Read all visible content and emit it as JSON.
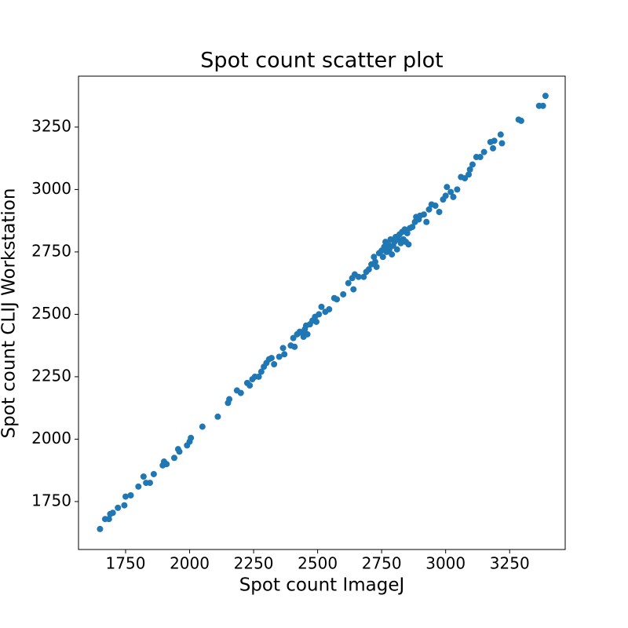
{
  "chart_data": {
    "type": "scatter",
    "title": "Spot count scatter plot",
    "x_label": "Spot count ImageJ",
    "y_label": "Spot count CLIJ Workstation",
    "color": "#1f77b4",
    "xlim": [
      1566,
      3467
    ],
    "ylim": [
      1558,
      3454
    ],
    "xticks": [
      1750,
      2000,
      2250,
      2500,
      2750,
      3000,
      3250
    ],
    "yticks": [
      1750,
      2000,
      2250,
      2500,
      2750,
      3000,
      3250
    ],
    "x": [
      1650,
      1670,
      1685,
      1690,
      1700,
      1720,
      1745,
      1750,
      1770,
      1800,
      1820,
      1830,
      1845,
      1860,
      1895,
      1900,
      1910,
      1940,
      1955,
      1960,
      1990,
      2000,
      2005,
      2050,
      2110,
      2150,
      2155,
      2185,
      2200,
      2225,
      2235,
      2245,
      2255,
      2270,
      2280,
      2290,
      2300,
      2310,
      2320,
      2330,
      2350,
      2365,
      2370,
      2395,
      2405,
      2410,
      2420,
      2430,
      2440,
      2445,
      2450,
      2455,
      2460,
      2470,
      2480,
      2490,
      2495,
      2505,
      2515,
      2530,
      2545,
      2565,
      2575,
      2600,
      2620,
      2635,
      2645,
      2640,
      2660,
      2680,
      2690,
      2700,
      2710,
      2720,
      2725,
      2730,
      2740,
      2750,
      2755,
      2760,
      2765,
      2770,
      2775,
      2780,
      2785,
      2790,
      2795,
      2800,
      2805,
      2810,
      2815,
      2820,
      2825,
      2830,
      2835,
      2840,
      2845,
      2850,
      2855,
      2860,
      2870,
      2880,
      2885,
      2895,
      2900,
      2915,
      2925,
      2935,
      2945,
      2960,
      2975,
      2990,
      3000,
      3005,
      3020,
      3030,
      3045,
      3060,
      3075,
      3090,
      3095,
      3105,
      3120,
      3135,
      3150,
      3175,
      3185,
      3190,
      3215,
      3220,
      3285,
      3295,
      3365,
      3380,
      3390
    ],
    "values": [
      1640,
      1680,
      1680,
      1700,
      1705,
      1725,
      1735,
      1770,
      1775,
      1810,
      1850,
      1825,
      1825,
      1860,
      1895,
      1910,
      1900,
      1925,
      1960,
      1950,
      1975,
      1990,
      2005,
      2050,
      2090,
      2145,
      2160,
      2195,
      2185,
      2225,
      2215,
      2240,
      2250,
      2250,
      2270,
      2290,
      2305,
      2320,
      2325,
      2300,
      2330,
      2365,
      2340,
      2375,
      2405,
      2370,
      2420,
      2430,
      2425,
      2410,
      2440,
      2455,
      2420,
      2460,
      2475,
      2490,
      2470,
      2500,
      2530,
      2510,
      2520,
      2565,
      2560,
      2580,
      2625,
      2645,
      2660,
      2600,
      2650,
      2650,
      2670,
      2680,
      2700,
      2730,
      2710,
      2690,
      2745,
      2755,
      2730,
      2770,
      2790,
      2750,
      2780,
      2760,
      2800,
      2740,
      2775,
      2790,
      2810,
      2760,
      2800,
      2820,
      2785,
      2830,
      2800,
      2840,
      2790,
      2825,
      2780,
      2845,
      2850,
      2870,
      2890,
      2880,
      2895,
      2900,
      2870,
      2920,
      2940,
      2935,
      2910,
      2960,
      2975,
      3010,
      2990,
      2970,
      3000,
      3050,
      3045,
      3060,
      3080,
      3100,
      3130,
      3130,
      3150,
      3190,
      3165,
      3195,
      3220,
      3185,
      3280,
      3275,
      3335,
      3335,
      3375
    ]
  }
}
